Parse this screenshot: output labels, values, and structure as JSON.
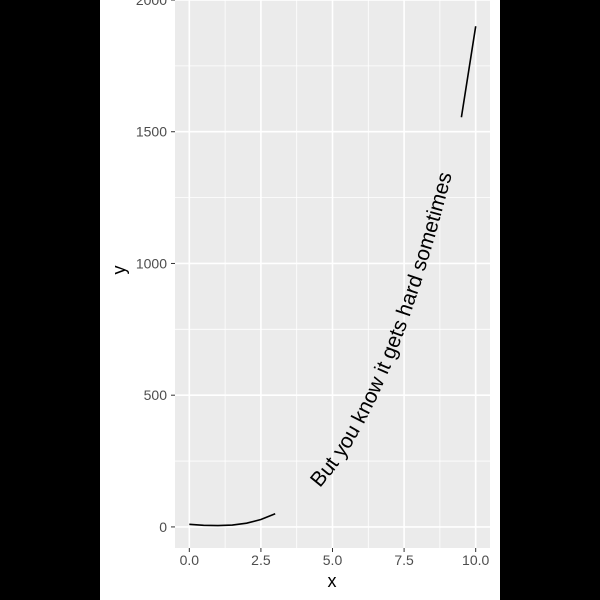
{
  "chart_data": {
    "type": "line",
    "xlabel": "x",
    "ylabel": "y",
    "xlim": [
      -0.5,
      10.5
    ],
    "ylim": [
      -80,
      2000
    ],
    "x_ticks": [
      0,
      2.5,
      5,
      7.5,
      10
    ],
    "x_tick_labels": [
      "0.0",
      "2.5",
      "5.0",
      "7.5",
      "10.0"
    ],
    "y_ticks": [
      0,
      500,
      1000,
      1500,
      2000
    ],
    "y_tick_labels": [
      "0",
      "500",
      "1000",
      "1500",
      "2000"
    ],
    "grid": true,
    "legend": "none",
    "series": [
      {
        "x": [
          0,
          0.5,
          1,
          1.5,
          2,
          2.5,
          3,
          3.5,
          4,
          4.5,
          5,
          5.5,
          6,
          6.5,
          7,
          7.5,
          8,
          8.5,
          9,
          9.5,
          10
        ],
        "y": [
          10,
          6,
          5,
          7,
          14,
          28,
          50,
          81,
          123,
          176,
          242,
          321,
          415,
          524,
          649,
          792,
          953,
          1133,
          1333,
          1555,
          1900
        ]
      }
    ],
    "curve_label": "But you know it gets hard sometimes",
    "colors": {
      "panel": "#ebebeb",
      "grid": "#ffffff",
      "line": "#000000",
      "background": "#ffffff",
      "outer": "#000000"
    }
  }
}
